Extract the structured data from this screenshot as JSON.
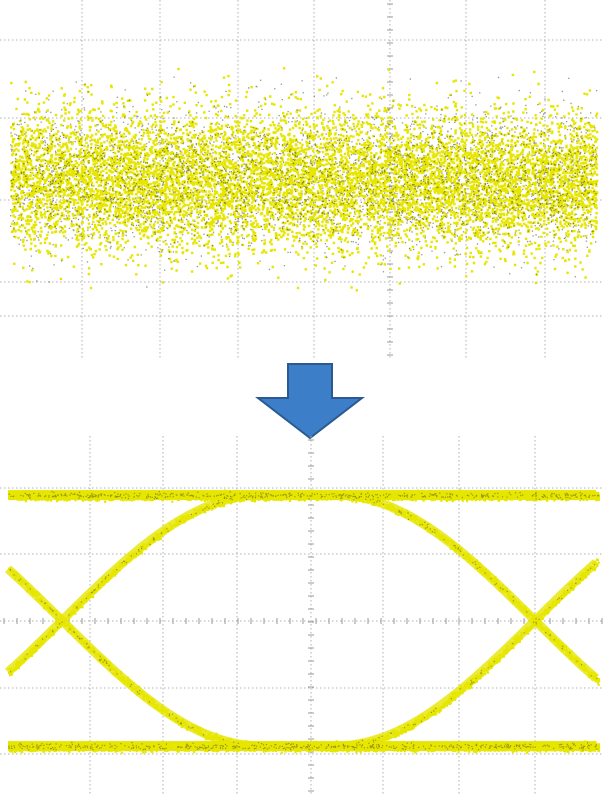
{
  "diagram": {
    "panels": [
      {
        "id": "before",
        "state": "closed-eye-noisy",
        "trace_color": "#e6e600"
      },
      {
        "id": "after",
        "state": "open-eye-diagram",
        "trace_color": "#e6e600"
      }
    ],
    "arrow": {
      "direction": "down",
      "color": "#3d7ec8",
      "outline": "#2a5a91"
    },
    "grid": {
      "line_color": "#b0b0b0",
      "style": "dotted"
    }
  }
}
